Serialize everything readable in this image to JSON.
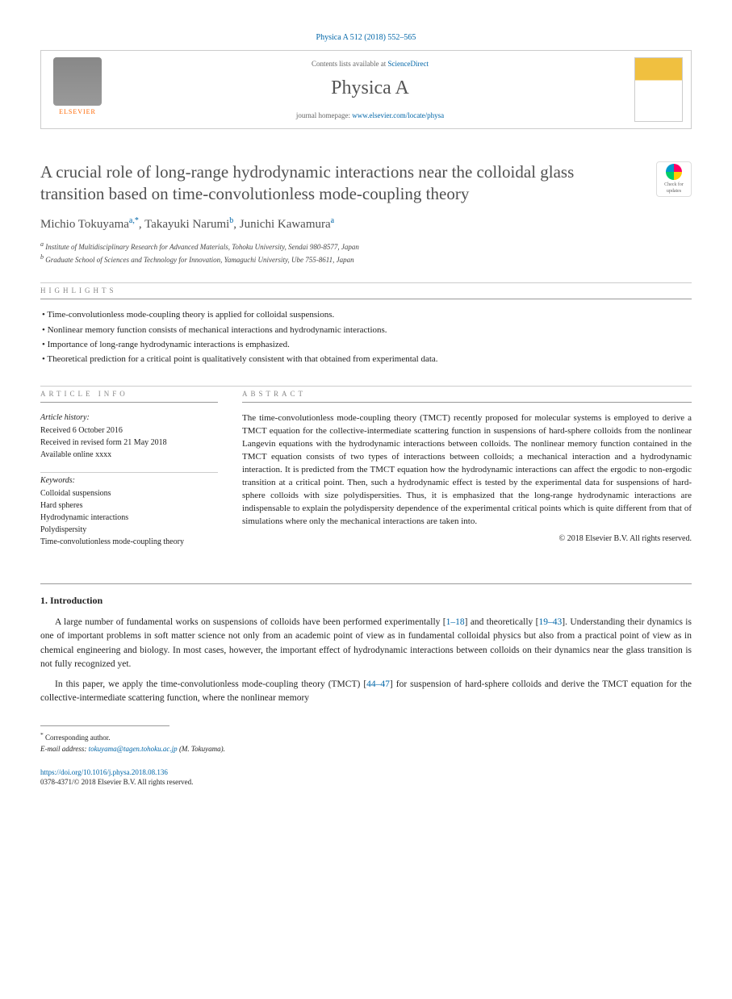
{
  "header": {
    "citation": "Physica A 512 (2018) 552–565",
    "contents_prefix": "Contents lists available at ",
    "contents_link": "ScienceDirect",
    "journal_name": "Physica A",
    "homepage_prefix": "journal homepage: ",
    "homepage_url": "www.elsevier.com/locate/physa",
    "elsevier_label": "ELSEVIER"
  },
  "check_badge": {
    "line1": "Check for",
    "line2": "updates"
  },
  "title": "A crucial role of long-range hydrodynamic interactions near the colloidal glass transition based on time-convolutionless mode-coupling theory",
  "authors": {
    "a1_name": "Michio Tokuyama",
    "a1_sup": "a,",
    "a1_star": "*",
    "sep1": ", ",
    "a2_name": "Takayuki Narumi",
    "a2_sup": "b",
    "sep2": ", ",
    "a3_name": "Junichi Kawamura",
    "a3_sup": "a"
  },
  "affiliations": {
    "a_sup": "a",
    "a_text": " Institute of Multidisciplinary Research for Advanced Materials, Tohoku University, Sendai 980-8577, Japan",
    "b_sup": "b",
    "b_text": " Graduate School of Sciences and Technology for Innovation, Yamaguchi University, Ube 755-8611, Japan"
  },
  "highlights": {
    "label": "HIGHLIGHTS",
    "items": [
      "Time-convolutionless mode-coupling theory is applied for colloidal suspensions.",
      "Nonlinear memory function consists of mechanical interactions and hydrodynamic interactions.",
      "Importance of long-range hydrodynamic interactions is emphasized.",
      "Theoretical prediction for a critical point is qualitatively consistent with that obtained from experimental data."
    ]
  },
  "article_info": {
    "label": "ARTICLE INFO",
    "history_heading": "Article history:",
    "history": [
      "Received 6 October 2016",
      "Received in revised form 21 May 2018",
      "Available online xxxx"
    ],
    "keywords_heading": "Keywords:",
    "keywords": [
      "Colloidal suspensions",
      "Hard spheres",
      "Hydrodynamic interactions",
      "Polydispersity",
      "Time-convolutionless mode-coupling theory"
    ]
  },
  "abstract": {
    "label": "ABSTRACT",
    "text": "The time-convolutionless mode-coupling theory (TMCT) recently proposed for molecular systems is employed to derive a TMCT equation for the collective-intermediate scattering function in suspensions of hard-sphere colloids from the nonlinear Langevin equations with the hydrodynamic interactions between colloids. The nonlinear memory function contained in the TMCT equation consists of two types of interactions between colloids; a mechanical interaction and a hydrodynamic interaction. It is predicted from the TMCT equation how the hydrodynamic interactions can affect the ergodic to non-ergodic transition at a critical point. Then, such a hydrodynamic effect is tested by the experimental data for suspensions of hard-sphere colloids with size polydispersities. Thus, it is emphasized that the long-range hydrodynamic interactions are indispensable to explain the polydispersity dependence of the experimental critical points which is quite different from that of simulations where only the mechanical interactions are taken into.",
    "copyright": "© 2018 Elsevier B.V. All rights reserved."
  },
  "introduction": {
    "heading": "1. Introduction",
    "p1_a": "A large number of fundamental works on suspensions of colloids have been performed experimentally [",
    "p1_ref1": "1–18",
    "p1_b": "] and theoretically [",
    "p1_ref2": "19–43",
    "p1_c": "]. Understanding their dynamics is one of important problems in soft matter science not only from an academic point of view as in fundamental colloidal physics but also from a practical point of view as in chemical engineering and biology. In most cases, however, the important effect of hydrodynamic interactions between colloids on their dynamics near the glass transition is not fully recognized yet.",
    "p2_a": "In this paper, we apply the time-convolutionless mode-coupling theory (TMCT) [",
    "p2_ref1": "44–47",
    "p2_b": "] for suspension of hard-sphere colloids and derive the TMCT equation for the collective-intermediate scattering function, where the nonlinear memory"
  },
  "footer": {
    "corr_star": "*",
    "corr_label": " Corresponding author.",
    "email_label": "E-mail address: ",
    "email": "tokuyama@tagen.tohoku.ac.jp",
    "email_suffix": " (M. Tokuyama).",
    "doi": "https://doi.org/10.1016/j.physa.2018.08.136",
    "issn": "0378-4371/© 2018 Elsevier B.V. All rights reserved."
  }
}
